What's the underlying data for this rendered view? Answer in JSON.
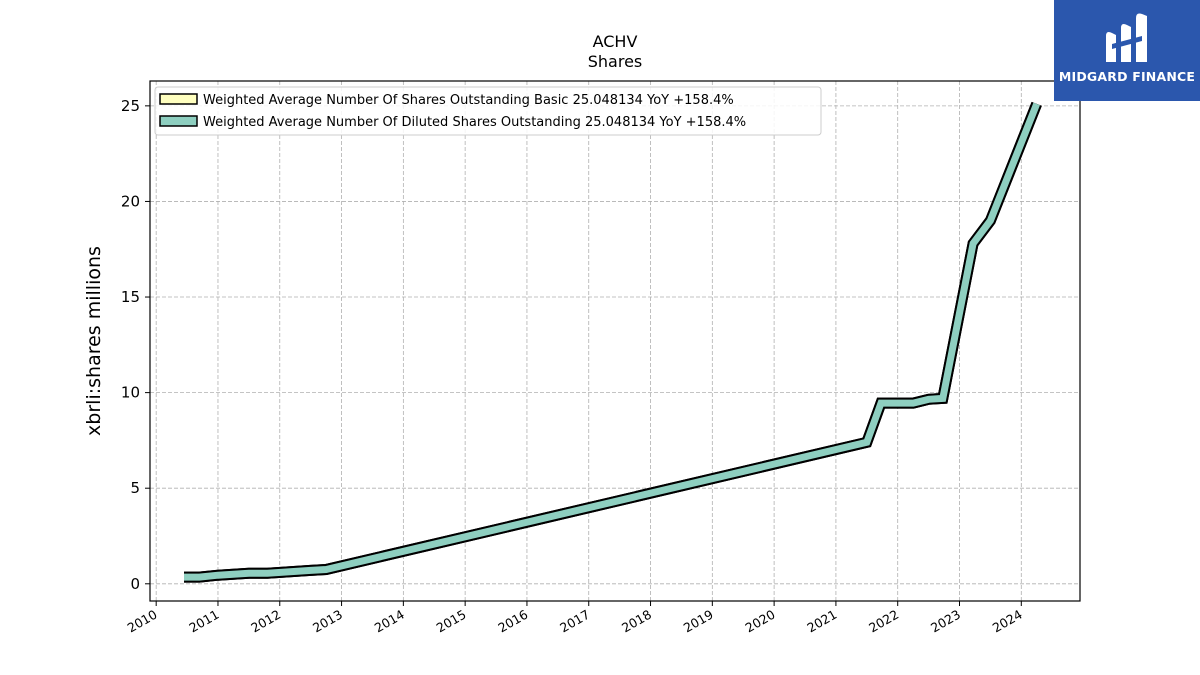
{
  "chart_data": {
    "type": "line",
    "title": "ACHV",
    "subtitle": "Shares",
    "xlabel": "",
    "ylabel": "xbrli:shares millions",
    "xlim": [
      2009.9,
      2024.95
    ],
    "ylim": [
      -0.9,
      26.3
    ],
    "grid": true,
    "legend_position": "top-left",
    "x_ticks": [
      "2010",
      "2011",
      "2012",
      "2013",
      "2014",
      "2015",
      "2016",
      "2017",
      "2018",
      "2019",
      "2020",
      "2021",
      "2022",
      "2023",
      "2024"
    ],
    "y_ticks": [
      0,
      5,
      10,
      15,
      20,
      25
    ],
    "x": [
      2010.45,
      2010.7,
      2011.0,
      2011.5,
      2011.8,
      2012.5,
      2012.75,
      2021.5,
      2021.73,
      2022.25,
      2022.5,
      2022.73,
      2023.22,
      2023.5,
      2024.25
    ],
    "series": [
      {
        "name": "Weighted Average Number Of Shares Outstanding Basic  25.048134 YoY +158.4%",
        "color": "#ffffbf",
        "values": [
          0.35,
          0.35,
          0.45,
          0.55,
          0.55,
          0.7,
          0.75,
          7.4,
          9.45,
          9.45,
          9.65,
          9.7,
          17.8,
          19.0,
          25.1
        ]
      },
      {
        "name": "Weighted Average Number Of Diluted Shares Outstanding  25.048134 YoY +158.4%",
        "color": "#8ecfc0",
        "values": [
          0.35,
          0.35,
          0.45,
          0.55,
          0.55,
          0.7,
          0.75,
          7.4,
          9.45,
          9.45,
          9.65,
          9.7,
          17.8,
          19.0,
          25.1
        ]
      }
    ]
  },
  "logo": {
    "text": "MIDGARD FINANCE",
    "background": "#2b57ad"
  }
}
